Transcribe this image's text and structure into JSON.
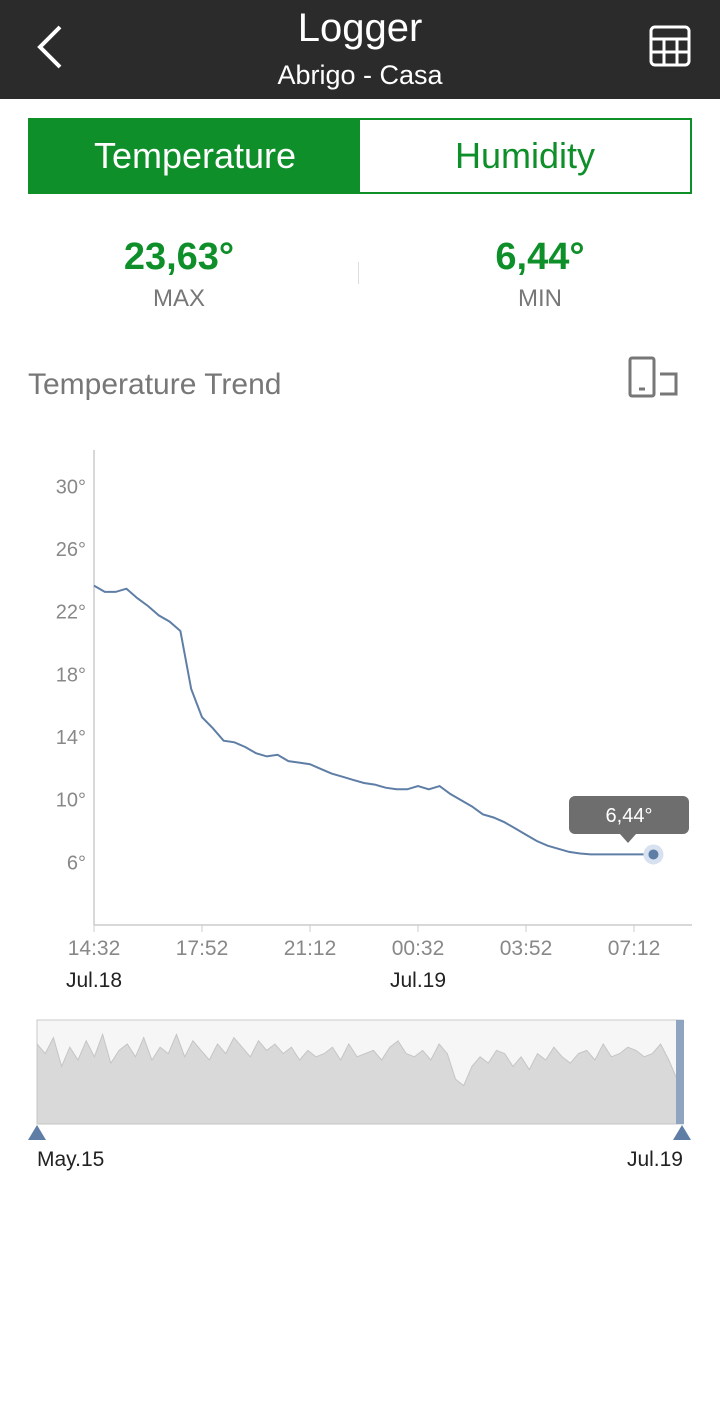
{
  "header": {
    "title": "Logger",
    "subtitle": "Abrigo - Casa",
    "back_icon": "chevron-left-icon",
    "table_icon": "table-grid-icon"
  },
  "tabs": [
    {
      "label": "Temperature",
      "active": true
    },
    {
      "label": "Humidity",
      "active": false
    }
  ],
  "stats": {
    "max": {
      "value": "23,63°",
      "label": "MAX"
    },
    "min": {
      "value": "6,44°",
      "label": "MIN"
    }
  },
  "trend": {
    "title": "Temperature Trend",
    "rotate_icon": "rotate-screen-icon"
  },
  "colors": {
    "accent": "#0e8f2a",
    "header_bg": "#2b2b2b",
    "line": "#5f7ea6"
  },
  "chart_data": {
    "type": "line",
    "y_ticks": [
      "30°",
      "26°",
      "22°",
      "18°",
      "14°",
      "10°",
      "6°"
    ],
    "y_tick_values": [
      30,
      26,
      22,
      18,
      14,
      10,
      6
    ],
    "ylim": [
      2,
      32
    ],
    "x_ticks": [
      {
        "time": "14:32",
        "date": "Jul.18"
      },
      {
        "time": "17:52",
        "date": ""
      },
      {
        "time": "21:12",
        "date": ""
      },
      {
        "time": "00:32",
        "date": "Jul.19"
      },
      {
        "time": "03:52",
        "date": ""
      },
      {
        "time": "07:12",
        "date": ""
      }
    ],
    "x_minutes": [
      0,
      20,
      40,
      60,
      80,
      100,
      120,
      140,
      160,
      180,
      200,
      220,
      240,
      260,
      280,
      300,
      320,
      340,
      360,
      380,
      400,
      420,
      440,
      460,
      480,
      500,
      520,
      540,
      560,
      580,
      600,
      620,
      640,
      660,
      680,
      700,
      720,
      740,
      760,
      780,
      800,
      820,
      840,
      860,
      880,
      900,
      920,
      940,
      960,
      980,
      1000,
      1020,
      1036
    ],
    "values": [
      23.6,
      23.2,
      23.2,
      23.4,
      22.8,
      22.3,
      21.7,
      21.3,
      20.7,
      17.0,
      15.2,
      14.5,
      13.7,
      13.6,
      13.3,
      12.9,
      12.7,
      12.8,
      12.4,
      12.3,
      12.2,
      11.9,
      11.6,
      11.4,
      11.2,
      11.0,
      10.9,
      10.7,
      10.6,
      10.6,
      10.8,
      10.6,
      10.8,
      10.3,
      9.9,
      9.5,
      9.0,
      8.8,
      8.5,
      8.1,
      7.7,
      7.3,
      7.0,
      6.8,
      6.6,
      6.5,
      6.44,
      6.44,
      6.44,
      6.44,
      6.44,
      6.44,
      6.44
    ],
    "tooltip": "6,44°",
    "series_name": "",
    "navigator": {
      "start_label": "May.15",
      "end_label": "Jul.19",
      "values": [
        25,
        22,
        27,
        18,
        24,
        20,
        26,
        21,
        28,
        19,
        23,
        25,
        21,
        27,
        20,
        24,
        22,
        28,
        21,
        26,
        23,
        20,
        25,
        22,
        27,
        24,
        21,
        26,
        23,
        25,
        22,
        24,
        20,
        23,
        21,
        22,
        24,
        20,
        25,
        21,
        22,
        23,
        20,
        24,
        26,
        22,
        21,
        23,
        20,
        25,
        22,
        14,
        12,
        18,
        21,
        19,
        23,
        22,
        18,
        21,
        17,
        22,
        20,
        24,
        21,
        19,
        22,
        23,
        20,
        25,
        21,
        22,
        24,
        23,
        21,
        22,
        25,
        20,
        14
      ]
    }
  }
}
